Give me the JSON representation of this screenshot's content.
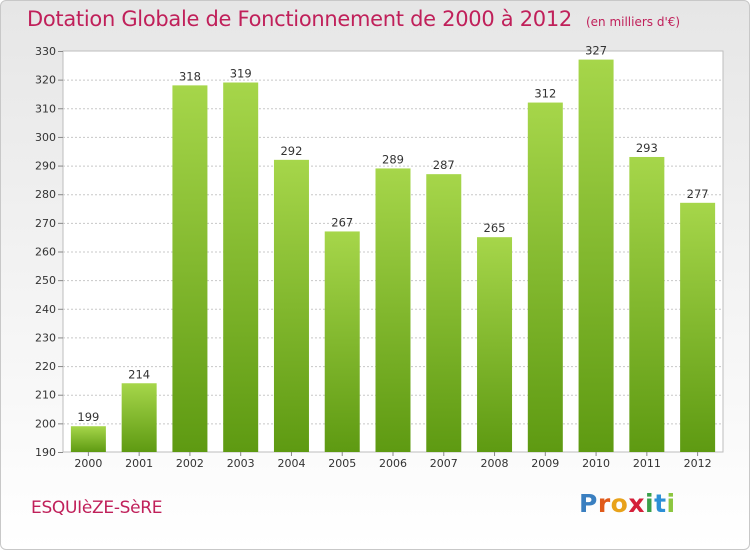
{
  "header": {
    "title": "Dotation Globale de Fonctionnement de 2000 à 2012",
    "subtitle": "(en milliers d'€)"
  },
  "footer": {
    "commune": "ESQUIèZE-SèRE",
    "logo_letters": [
      "P",
      "r",
      "o",
      "x",
      "i",
      "t",
      "i"
    ],
    "logo_colors": [
      "#3a7fc0",
      "#e05a1a",
      "#e8a21a",
      "#d4203a",
      "#3aa04a",
      "#2c8fd6",
      "#8cc63f"
    ]
  },
  "colors": {
    "bar_light": "#a6d64a",
    "bar_dark": "#5e9a12",
    "grid": "#c8c8c8",
    "title": "#c0205a"
  },
  "chart_data": {
    "type": "bar",
    "categories": [
      "2000",
      "2001",
      "2002",
      "2003",
      "2004",
      "2005",
      "2006",
      "2007",
      "2008",
      "2009",
      "2010",
      "2011",
      "2012"
    ],
    "values": [
      199,
      214,
      318,
      319,
      292,
      267,
      289,
      287,
      265,
      312,
      327,
      293,
      277
    ],
    "title": "Dotation Globale de Fonctionnement de 2000 à 2012",
    "subtitle": "(en milliers d'€)",
    "xlabel": "",
    "ylabel": "",
    "ylim": [
      190,
      330
    ],
    "yticks": [
      190,
      200,
      210,
      220,
      230,
      240,
      250,
      260,
      270,
      280,
      290,
      300,
      310,
      320,
      330
    ],
    "grid": true,
    "data_labels": true
  }
}
